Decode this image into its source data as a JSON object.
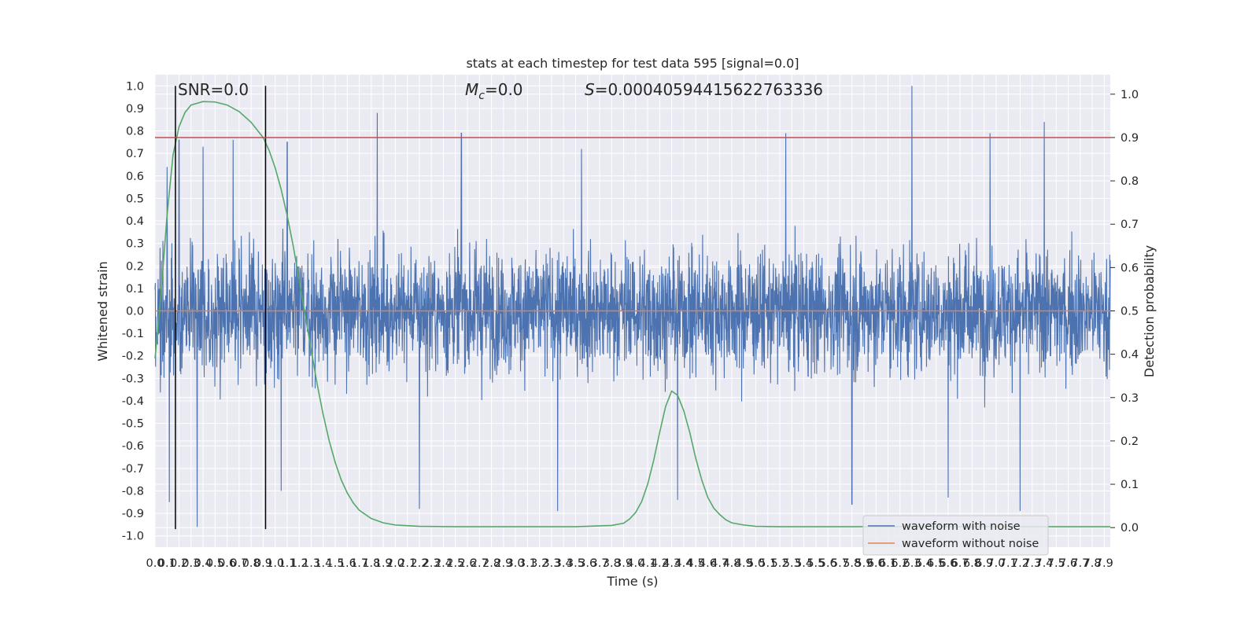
{
  "chart_data": {
    "type": "line",
    "title": "stats at each timestep for test data 595 [signal=0.0]",
    "xlabel": "Time (s)",
    "ylabel": "Whitened strain",
    "y2label": "Detection probability",
    "xlim": [
      0.0,
      7.95
    ],
    "ylim": [
      -1.05,
      1.05
    ],
    "y2lim": [
      -0.045,
      1.045
    ],
    "x_tick_step": 0.1,
    "x_tick_max": 7.9,
    "y_ticks": [
      -1.0,
      -0.9,
      -0.8,
      -0.7,
      -0.6,
      -0.5,
      -0.4,
      -0.3,
      -0.2,
      -0.1,
      0.0,
      0.1,
      0.2,
      0.3,
      0.4,
      0.5,
      0.6,
      0.7,
      0.8,
      0.9,
      1.0
    ],
    "y2_ticks": [
      0.0,
      0.1,
      0.2,
      0.3,
      0.4,
      0.5,
      0.6,
      0.7,
      0.8,
      0.9,
      1.0
    ],
    "grid": true,
    "legend_position": "lower-right",
    "annotations": {
      "snr": "SNR=0.0",
      "mc": "=0.0",
      "s": "=0.00040594415622763336"
    },
    "series": [
      {
        "name": "waveform with noise",
        "color": "#4c72b0",
        "axis": "left",
        "style": "dense-noise",
        "envelope_max": 1.0,
        "envelope_min": -0.96,
        "peaks": [
          [
            0.1,
            0.64
          ],
          [
            0.2,
            0.76
          ],
          [
            0.4,
            0.73
          ],
          [
            0.65,
            0.76
          ],
          [
            1.1,
            0.75
          ],
          [
            1.85,
            0.88
          ],
          [
            2.55,
            0.79
          ],
          [
            3.55,
            0.72
          ],
          [
            5.25,
            0.79
          ],
          [
            6.3,
            1.0
          ],
          [
            6.95,
            0.79
          ],
          [
            7.4,
            0.84
          ]
        ],
        "troughs": [
          [
            0.12,
            -0.85
          ],
          [
            0.35,
            -0.96
          ],
          [
            1.05,
            -0.8
          ],
          [
            2.2,
            -0.88
          ],
          [
            3.35,
            -0.89
          ],
          [
            4.35,
            -0.84
          ],
          [
            5.8,
            -0.86
          ],
          [
            6.6,
            -0.83
          ],
          [
            7.2,
            -0.89
          ]
        ]
      },
      {
        "name": "waveform without noise",
        "color": "#dd8452",
        "axis": "left",
        "x": [
          0.0,
          7.95
        ],
        "values": [
          0.0,
          0.0
        ]
      },
      {
        "name": "detection probability",
        "color": "#55a868",
        "axis": "right",
        "x": [
          0.0,
          0.05,
          0.1,
          0.15,
          0.2,
          0.25,
          0.3,
          0.4,
          0.5,
          0.6,
          0.7,
          0.8,
          0.9,
          0.95,
          1.0,
          1.05,
          1.1,
          1.15,
          1.2,
          1.25,
          1.3,
          1.35,
          1.4,
          1.45,
          1.5,
          1.55,
          1.6,
          1.65,
          1.7,
          1.8,
          1.9,
          2.0,
          2.2,
          2.5,
          3.0,
          3.5,
          3.8,
          3.9,
          3.95,
          4.0,
          4.05,
          4.1,
          4.15,
          4.2,
          4.25,
          4.3,
          4.35,
          4.4,
          4.45,
          4.5,
          4.55,
          4.6,
          4.65,
          4.7,
          4.75,
          4.8,
          4.9,
          5.0,
          5.2,
          5.5,
          6.0,
          7.0,
          7.95
        ],
        "values": [
          0.39,
          0.54,
          0.72,
          0.86,
          0.925,
          0.958,
          0.975,
          0.983,
          0.982,
          0.975,
          0.96,
          0.935,
          0.9,
          0.87,
          0.83,
          0.78,
          0.72,
          0.65,
          0.57,
          0.49,
          0.41,
          0.33,
          0.26,
          0.2,
          0.15,
          0.11,
          0.08,
          0.057,
          0.04,
          0.021,
          0.011,
          0.006,
          0.003,
          0.002,
          0.002,
          0.002,
          0.005,
          0.01,
          0.02,
          0.035,
          0.06,
          0.1,
          0.155,
          0.22,
          0.28,
          0.315,
          0.305,
          0.27,
          0.22,
          0.16,
          0.11,
          0.07,
          0.045,
          0.03,
          0.018,
          0.011,
          0.006,
          0.003,
          0.002,
          0.002,
          0.002,
          0.002,
          0.002
        ]
      }
    ],
    "reference_lines": {
      "vertical_x": [
        0.17,
        0.92
      ],
      "vertical_y_range": [
        -0.97,
        1.0
      ],
      "vertical_color": "#000000",
      "threshold_y2": 0.9,
      "threshold_color": "#c44e52"
    }
  },
  "legend": {
    "items": [
      {
        "label": "waveform with noise",
        "color": "#4c72b0"
      },
      {
        "label": "waveform without noise",
        "color": "#dd8452"
      }
    ]
  }
}
